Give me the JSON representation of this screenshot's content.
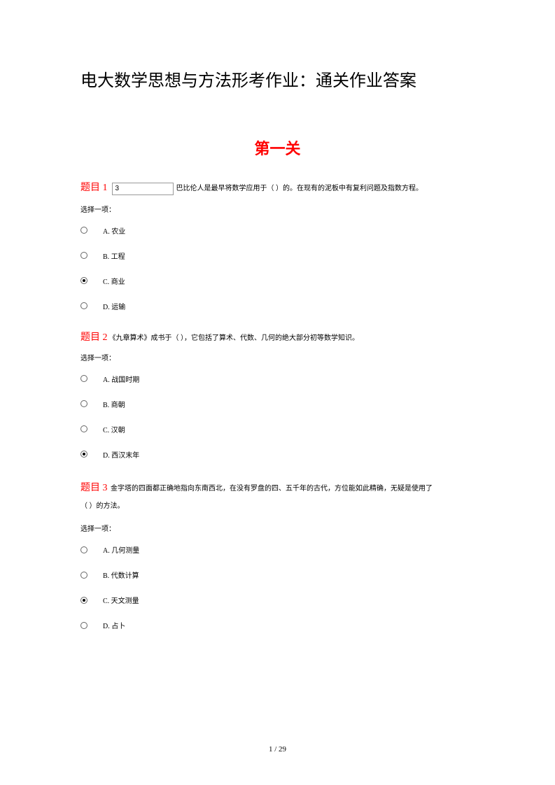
{
  "colors": {
    "accent": "#ff0000",
    "text": "#000000",
    "background": "#ffffff",
    "border": "#999999"
  },
  "typography": {
    "title_fontsize": 24,
    "section_fontsize": 22,
    "body_fontsize": 10,
    "label_fontsize": 14
  },
  "title": "电大数学思想与方法形考作业：通关作业答案",
  "section": "第一关",
  "select_prompt": "选择一项：",
  "q1": {
    "label": "题目 1",
    "input_value": "3",
    "text": "巴比伦人是最早将数学应用于（    ）的。在现有的泥板中有复利问题及指数方程。",
    "options": {
      "a": "A. 农业",
      "b": "B. 工程",
      "c": "C. 商业",
      "d": "D. 运输"
    },
    "selected": "c"
  },
  "q2": {
    "label": "题目 2",
    "text": "《九章算术》成书于（    ），它包括了算术、代数、几何的绝大部分初等数学知识。",
    "options": {
      "a": "A. 战国时期",
      "b": "B. 商朝",
      "c": "C. 汉朝",
      "d": "D. 西汉末年"
    },
    "selected": "d"
  },
  "q3": {
    "label": "题目 3",
    "text_part1": "金字塔的四面都正确地指向东南西北，在没有罗盘的四、五千年的古代，方位能如此精确，无疑是使用了",
    "text_part2": "（    ）的方法。",
    "options": {
      "a": "A. 几何测量",
      "b": "B. 代数计算",
      "c": "C. 天文测量",
      "d": "D. 占卜"
    },
    "selected": "c"
  },
  "page_number": "1 / 29"
}
